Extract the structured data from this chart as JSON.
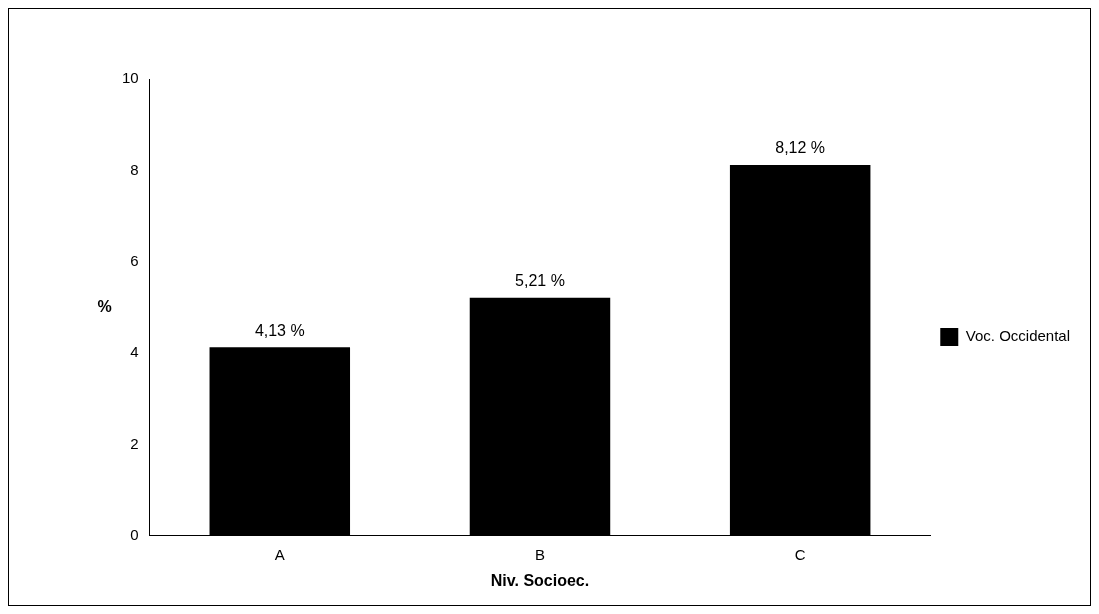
{
  "chart_data": {
    "type": "bar",
    "xlabel": "Niv. Socioec.",
    "ylabel": "%",
    "categories": [
      "A",
      "B",
      "C"
    ],
    "series": [
      {
        "name": "Voc. Occidental",
        "color": "#000000",
        "values": [
          4.13,
          5.21,
          8.12
        ],
        "value_labels": [
          "4,13 %",
          "5,21 %",
          "8,12 %"
        ]
      }
    ],
    "ylim": [
      0,
      10
    ],
    "yticks": [
      0,
      2,
      4,
      6,
      8,
      10
    ],
    "grid": false,
    "legend": "right"
  }
}
